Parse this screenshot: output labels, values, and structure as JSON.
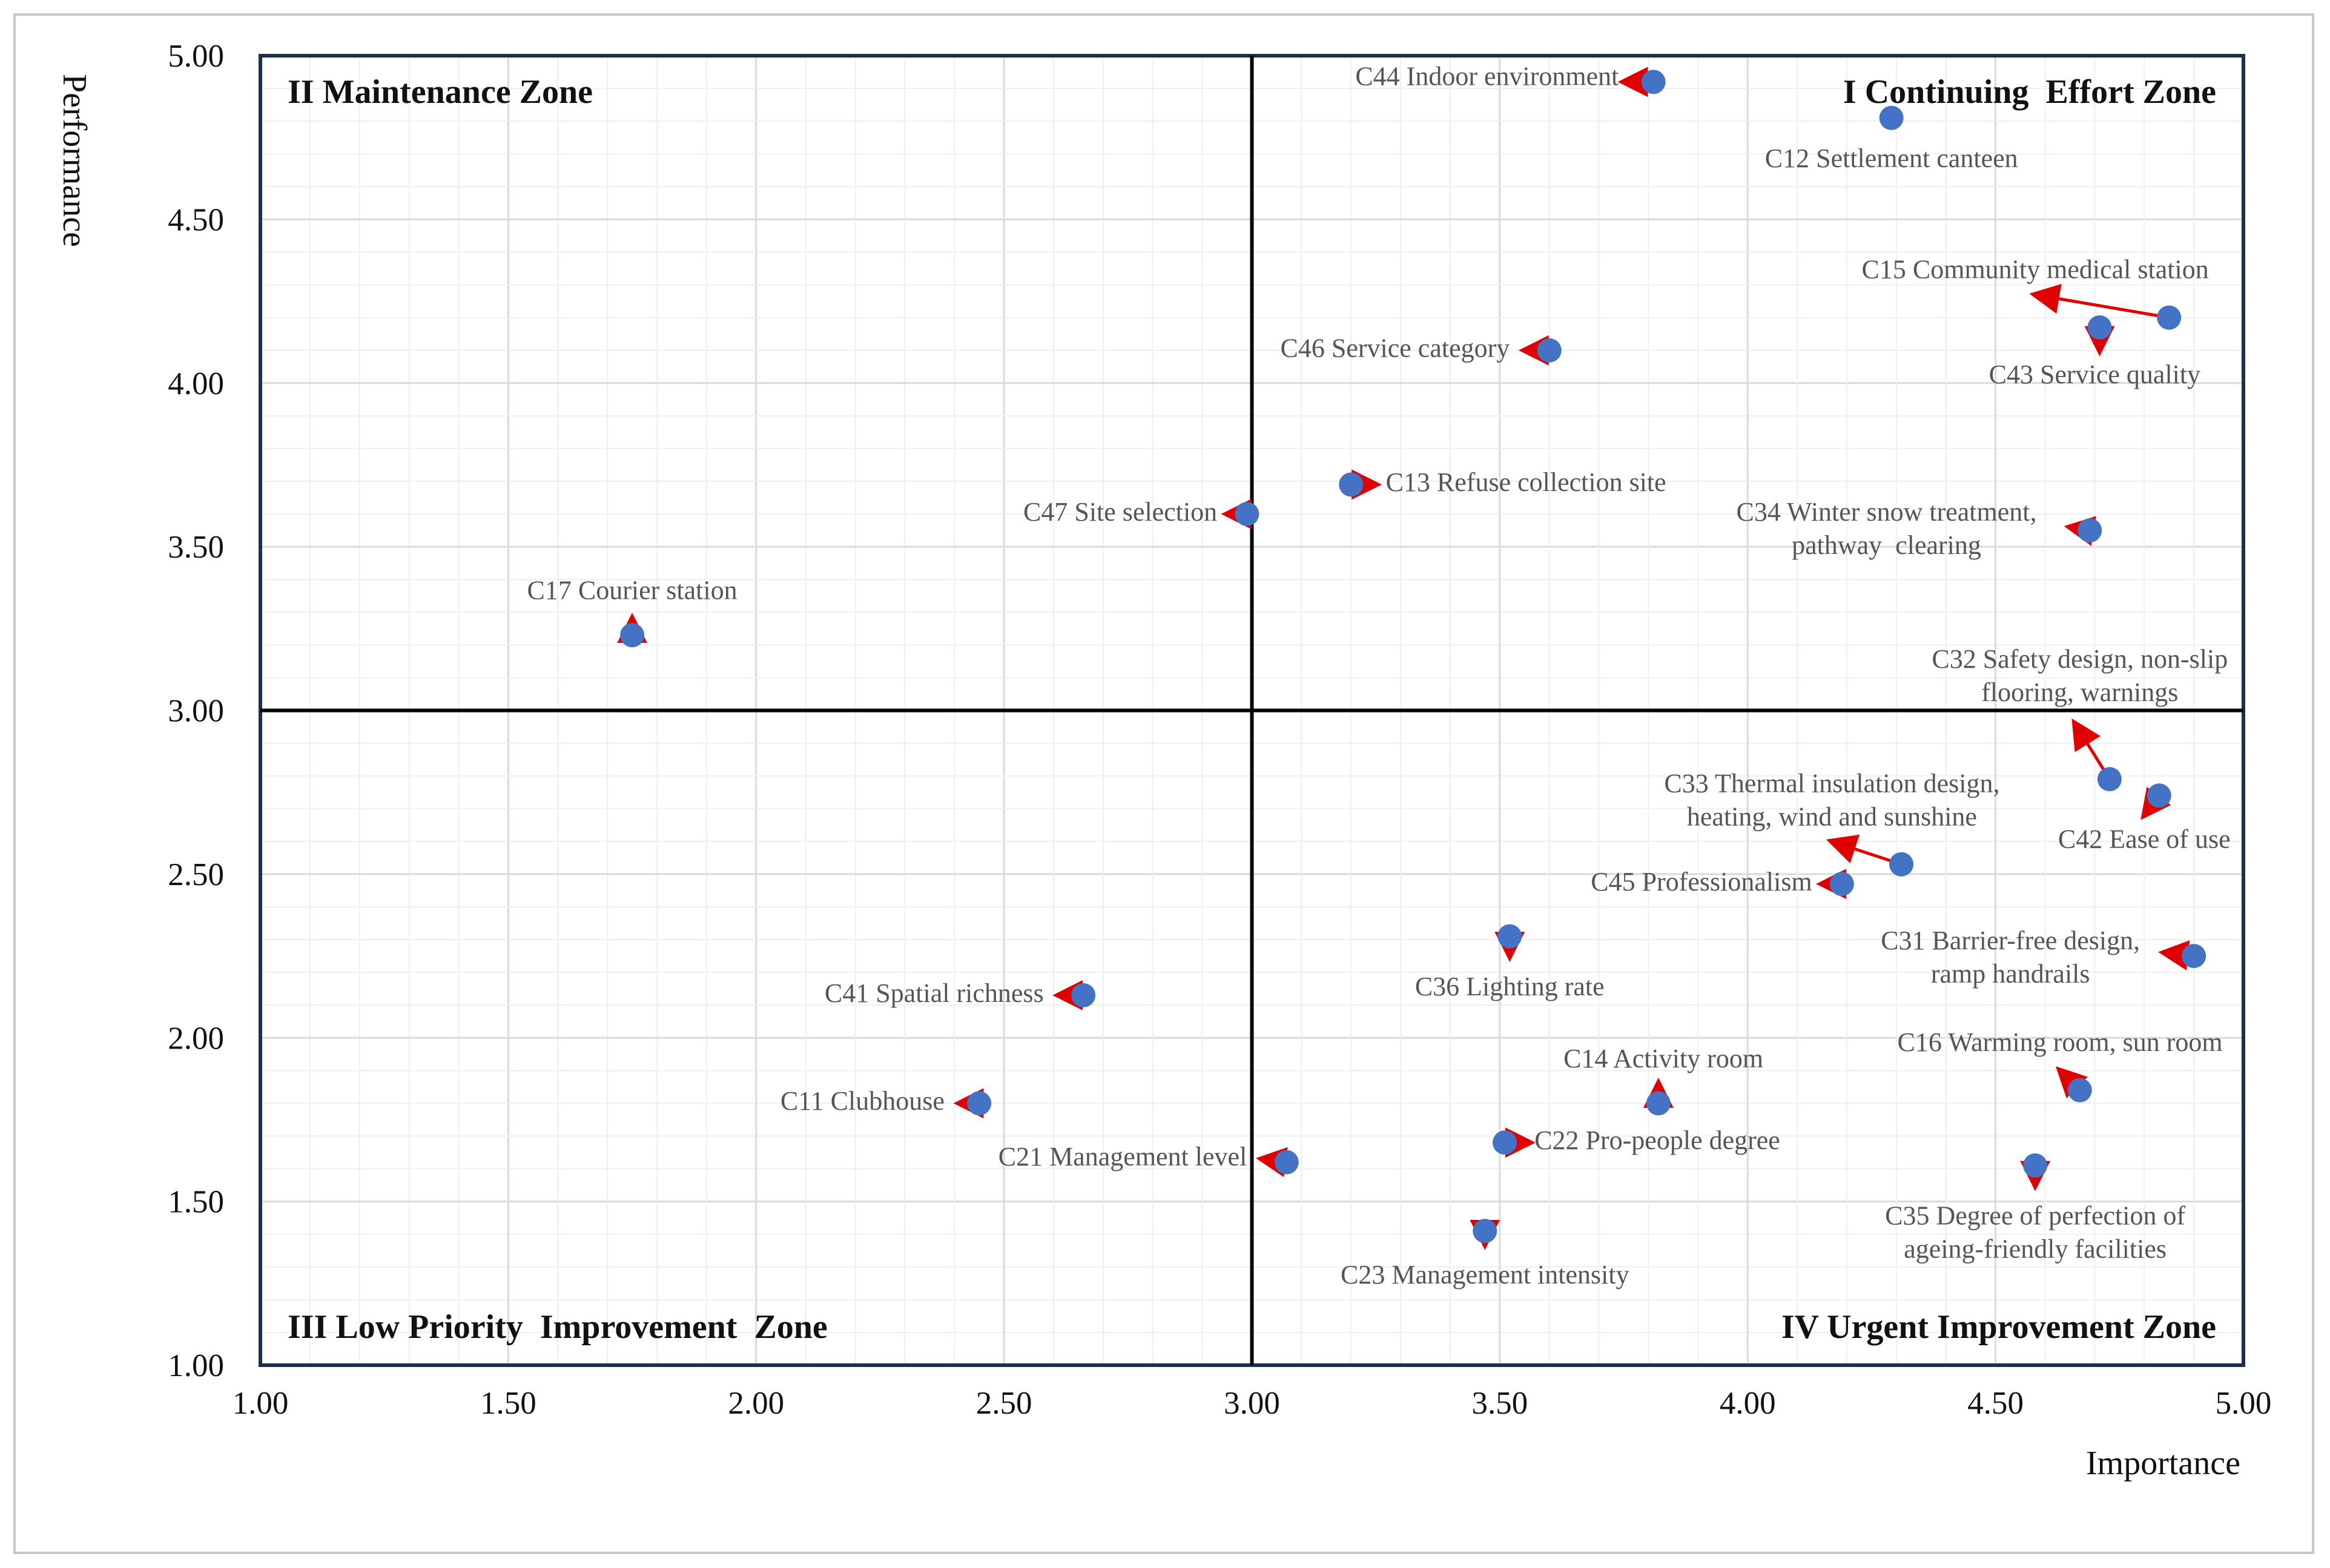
{
  "chart_data": {
    "type": "scatter",
    "title": "",
    "xlabel": "Importance",
    "ylabel": "Performance",
    "xlim": [
      1.0,
      5.0
    ],
    "ylim": [
      1.0,
      5.0
    ],
    "x_ticks": [
      "1.00",
      "1.50",
      "2.00",
      "2.50",
      "3.00",
      "3.50",
      "4.00",
      "4.50",
      "5.00"
    ],
    "y_ticks": [
      "1.00",
      "1.50",
      "2.00",
      "2.50",
      "3.00",
      "3.50",
      "4.00",
      "4.50",
      "5.00"
    ],
    "grid": true,
    "divider": {
      "x": 3.0,
      "y": 3.0
    },
    "zones": [
      {
        "id": "II",
        "label": "II Maintenance Zone",
        "corner": "top-left"
      },
      {
        "id": "I",
        "label": "I Continuing  Effort Zone",
        "corner": "top-right"
      },
      {
        "id": "III",
        "label": "III Low Priority  Improvement  Zone",
        "corner": "bottom-left"
      },
      {
        "id": "IV",
        "label": "IV Urgent Improvement Zone",
        "corner": "bottom-right"
      }
    ],
    "colors": {
      "point": "#4472C4",
      "arrow": "#E00000",
      "axis_box": "#1F2D4E",
      "grid": "#E2E2E2",
      "label": "#555555"
    },
    "points": [
      {
        "id": "C44",
        "label": [
          "C44 Indoor environment"
        ],
        "x": 3.81,
        "y": 4.92,
        "arrow": [
          3.75,
          4.92
        ],
        "anchor": "end",
        "lx": 3.74,
        "ly": 4.91
      },
      {
        "id": "C12",
        "label": [
          "C12 Settlement canteen"
        ],
        "x": 4.29,
        "y": 4.81,
        "arrow": null,
        "anchor": "middle",
        "lx": 4.29,
        "ly": 4.66
      },
      {
        "id": "C15",
        "label": [
          "C15 Community medical station"
        ],
        "x": 4.85,
        "y": 4.2,
        "arrow": [
          4.58,
          4.27
        ],
        "anchor": "middle",
        "lx": 4.58,
        "ly": 4.32
      },
      {
        "id": "C43",
        "label": [
          "C43 Service quality"
        ],
        "x": 4.71,
        "y": 4.17,
        "arrow": [
          4.71,
          4.1
        ],
        "anchor": "middle",
        "lx": 4.7,
        "ly": 4.0
      },
      {
        "id": "C46",
        "label": [
          "C46 Service category"
        ],
        "x": 3.6,
        "y": 4.1,
        "arrow": [
          3.55,
          4.1
        ],
        "anchor": "end",
        "lx": 3.52,
        "ly": 4.08
      },
      {
        "id": "C13",
        "label": [
          "C13 Refuse collection site"
        ],
        "x": 3.2,
        "y": 3.69,
        "arrow": [
          3.25,
          3.69
        ],
        "anchor": "start",
        "lx": 3.27,
        "ly": 3.67
      },
      {
        "id": "C47",
        "label": [
          "C47 Site selection"
        ],
        "x": 2.99,
        "y": 3.6,
        "arrow": [
          2.95,
          3.6
        ],
        "anchor": "end",
        "lx": 2.93,
        "ly": 3.58
      },
      {
        "id": "C34",
        "label": [
          "C34 Winter snow treatment,",
          "pathway  clearing"
        ],
        "x": 4.69,
        "y": 3.55,
        "arrow": [
          4.65,
          3.56
        ],
        "anchor": "middle",
        "lx": 4.28,
        "ly": 3.58
      },
      {
        "id": "C17",
        "label": [
          "C17 Courier station"
        ],
        "x": 1.75,
        "y": 3.23,
        "arrow": [
          1.75,
          3.28
        ],
        "anchor": "middle",
        "lx": 1.75,
        "ly": 3.34
      },
      {
        "id": "C32",
        "label": [
          "C32 Safety design, non-slip",
          "flooring, warnings"
        ],
        "x": 4.73,
        "y": 2.79,
        "arrow": [
          4.66,
          2.96
        ],
        "anchor": "middle",
        "lx": 4.67,
        "ly": 3.13
      },
      {
        "id": "C42",
        "label": [
          "C42 Ease of use"
        ],
        "x": 4.83,
        "y": 2.74,
        "arrow": [
          4.8,
          2.68
        ],
        "anchor": "middle",
        "lx": 4.8,
        "ly": 2.58
      },
      {
        "id": "C33",
        "label": [
          "C33 Thermal insulation design,",
          "heating, wind and sunshine"
        ],
        "x": 4.31,
        "y": 2.53,
        "arrow": [
          4.17,
          2.6
        ],
        "anchor": "middle",
        "lx": 4.17,
        "ly": 2.75
      },
      {
        "id": "C45",
        "label": [
          "C45 Professionalism"
        ],
        "x": 4.19,
        "y": 2.47,
        "arrow": [
          4.15,
          2.47
        ],
        "anchor": "end",
        "lx": 4.13,
        "ly": 2.45
      },
      {
        "id": "C36",
        "label": [
          "C36 Lighting rate"
        ],
        "x": 3.52,
        "y": 2.31,
        "arrow": [
          3.52,
          2.25
        ],
        "anchor": "middle",
        "lx": 3.52,
        "ly": 2.13
      },
      {
        "id": "C31",
        "label": [
          "C31 Barrier-free design,",
          "ramp handrails"
        ],
        "x": 4.9,
        "y": 2.25,
        "arrow": [
          4.84,
          2.26
        ],
        "anchor": "middle",
        "lx": 4.53,
        "ly": 2.27
      },
      {
        "id": "C41",
        "label": [
          "C41 Spatial richness"
        ],
        "x": 2.66,
        "y": 2.13,
        "arrow": [
          2.61,
          2.13
        ],
        "anchor": "end",
        "lx": 2.58,
        "ly": 2.11
      },
      {
        "id": "C11",
        "label": [
          "C11 Clubhouse"
        ],
        "x": 2.45,
        "y": 1.8,
        "arrow": [
          2.41,
          1.8
        ],
        "anchor": "end",
        "lx": 2.38,
        "ly": 1.78
      },
      {
        "id": "C14",
        "label": [
          "C14 Activity room"
        ],
        "x": 3.82,
        "y": 1.8,
        "arrow": [
          3.82,
          1.86
        ],
        "anchor": "middle",
        "lx": 3.83,
        "ly": 1.91
      },
      {
        "id": "C16",
        "label": [
          "C16 Warming room, sun room"
        ],
        "x": 4.67,
        "y": 1.84,
        "arrow": [
          4.63,
          1.9
        ],
        "anchor": "middle",
        "lx": 4.63,
        "ly": 1.96
      },
      {
        "id": "C21",
        "label": [
          "C21 Management level"
        ],
        "x": 3.07,
        "y": 1.62,
        "arrow": [
          3.02,
          1.63
        ],
        "anchor": "end",
        "lx": 2.99,
        "ly": 1.61
      },
      {
        "id": "C22",
        "label": [
          "C22 Pro-people degree"
        ],
        "x": 3.51,
        "y": 1.68,
        "arrow": [
          3.56,
          1.68
        ],
        "anchor": "start",
        "lx": 3.57,
        "ly": 1.66
      },
      {
        "id": "C35",
        "label": [
          "C35 Degree of perfection of",
          "ageing-friendly facilities"
        ],
        "x": 4.58,
        "y": 1.61,
        "arrow": [
          4.58,
          1.55
        ],
        "anchor": "middle",
        "lx": 4.58,
        "ly": 1.43
      },
      {
        "id": "C23",
        "label": [
          "C23 Management intensity"
        ],
        "x": 3.47,
        "y": 1.41,
        "arrow": [
          3.47,
          1.37
        ],
        "anchor": "middle",
        "lx": 3.47,
        "ly": 1.25
      }
    ]
  }
}
